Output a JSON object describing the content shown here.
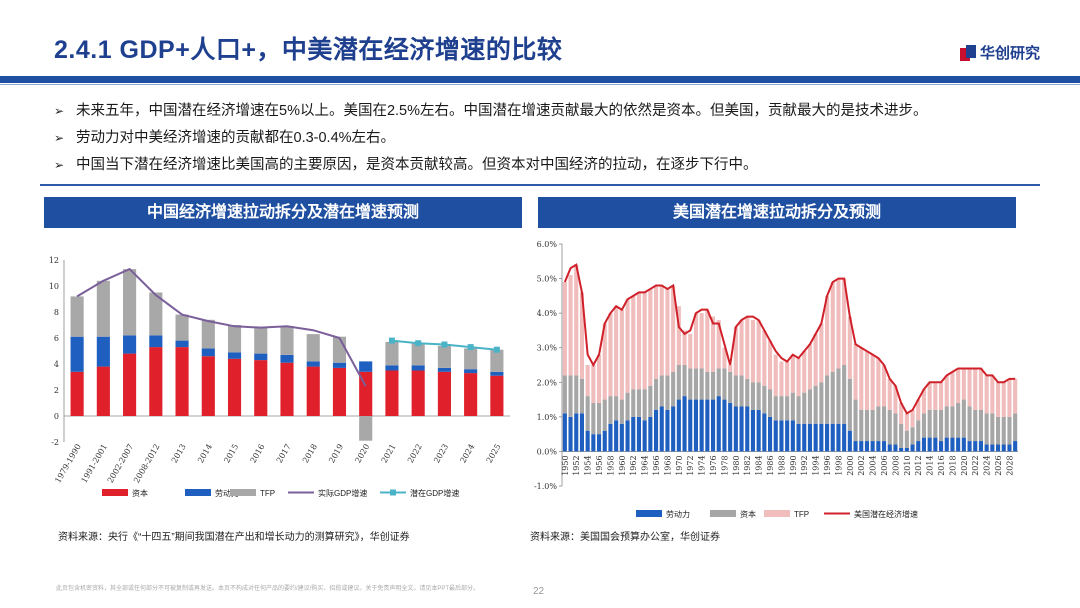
{
  "header": {
    "title": "2.4.1 GDP+人口+，中美潜在经济增速的比较",
    "logo_text": "华创研究"
  },
  "bullets": [
    "未来五年，中国潜在经济增速在5%以上。美国在2.5%左右。中国潜在增速贡献最大的依然是资本。但美国，贡献最大的是技术进步。",
    "劳动力对中美经济增速的贡献都在0.3-0.4%左右。",
    "中国当下潜在经济增速比美国高的主要原因，是资本贡献较高。但资本对中国经济的拉动，在逐步下行中。"
  ],
  "left_panel": {
    "heading": "中国经济增速拉动拆分及潜在增速预测",
    "source": "资料来源：央行《“十四五”期间我国潜在产出和增长动力的测算研究》，华创证券"
  },
  "right_panel": {
    "heading": "美国潜在增速拉动拆分及预测",
    "source": "资料来源：美国国会预算办公室，华创证券"
  },
  "footer": {
    "disclaimer": "此页包含机密资料，其全部或任何部分不可被复制或再发送。本页不构成对任何产品的要约/建议/购买、招揽或建议。关于免责声明全文，请见本PPT最后部分。",
    "page_number": "22"
  },
  "colors": {
    "capital": "#e0202a",
    "labor": "#1f5fbf",
    "tfp": "#a8a8a8",
    "actual_gdp": "#7a5f9a",
    "potential_gdp": "#4bb3c8",
    "us_capital": "#a6a6a6",
    "us_tfp": "#f0bcbc",
    "us_potential": "#d0202a"
  },
  "chart_data": [
    {
      "type": "bar",
      "stacked": true,
      "ylim": [
        -2,
        12
      ],
      "yticks": [
        -2,
        0,
        2,
        4,
        6,
        8,
        10,
        12
      ],
      "categories": [
        "1979-1990",
        "1991-2001",
        "2002-2007",
        "2008-2012",
        "2013",
        "2014",
        "2015",
        "2016",
        "2017",
        "2018",
        "2019",
        "2020",
        "2021",
        "2022",
        "2023",
        "2024",
        "2025"
      ],
      "series": [
        {
          "name": "资本",
          "values": [
            3.4,
            3.8,
            4.8,
            5.3,
            5.3,
            4.6,
            4.4,
            4.3,
            4.1,
            3.8,
            3.7,
            3.4,
            3.5,
            3.5,
            3.4,
            3.3,
            3.1
          ]
        },
        {
          "name": "劳动力",
          "values": [
            2.7,
            2.3,
            1.4,
            0.9,
            0.5,
            0.6,
            0.5,
            0.5,
            0.6,
            0.4,
            0.4,
            0.8,
            0.4,
            0.4,
            0.3,
            0.3,
            0.3
          ]
        },
        {
          "name": "TFP",
          "values": [
            3.1,
            4.3,
            5.1,
            3.3,
            2.0,
            2.2,
            2.1,
            2.0,
            2.2,
            2.1,
            2.0,
            -1.9,
            1.8,
            1.7,
            1.7,
            1.6,
            1.7
          ]
        }
      ],
      "lines": [
        {
          "name": "实际GDP增速",
          "values": [
            9.2,
            10.4,
            11.3,
            9.3,
            7.8,
            7.3,
            6.9,
            6.8,
            6.9,
            6.6,
            6.0,
            2.3,
            null,
            null,
            null,
            null,
            null
          ]
        },
        {
          "name": "潜在GDP增速",
          "values": [
            null,
            null,
            null,
            null,
            null,
            null,
            null,
            null,
            null,
            null,
            null,
            null,
            5.8,
            5.6,
            5.5,
            5.3,
            5.1
          ]
        }
      ]
    },
    {
      "type": "bar",
      "stacked": true,
      "ylim": [
        -1.0,
        6.0
      ],
      "yticks": [
        "-1.0%",
        "0.0%",
        "1.0%",
        "2.0%",
        "3.0%",
        "4.0%",
        "5.0%",
        "6.0%"
      ],
      "x_start": 1950,
      "x_end": 2029,
      "x_labels": [
        "1950",
        "1952",
        "1954",
        "1956",
        "1958",
        "1960",
        "1962",
        "1964",
        "1966",
        "1968",
        "1970",
        "1972",
        "1974",
        "1976",
        "1978",
        "1980",
        "1982",
        "1984",
        "1986",
        "1988",
        "1990",
        "1992",
        "1994",
        "1996",
        "1998",
        "2000",
        "2002",
        "2004",
        "2006",
        "2008",
        "2010",
        "2012",
        "2014",
        "2016",
        "2018",
        "2020",
        "2022",
        "2024",
        "2026",
        "2028"
      ],
      "series": [
        {
          "name": "劳动力",
          "values": [
            1.1,
            1.0,
            1.1,
            1.1,
            0.6,
            0.5,
            0.5,
            0.6,
            0.8,
            0.9,
            0.8,
            0.9,
            1.0,
            1.0,
            0.9,
            1.0,
            1.2,
            1.3,
            1.2,
            1.3,
            1.5,
            1.6,
            1.5,
            1.5,
            1.5,
            1.5,
            1.5,
            1.6,
            1.5,
            1.4,
            1.3,
            1.3,
            1.3,
            1.2,
            1.2,
            1.1,
            1.0,
            0.9,
            0.9,
            0.9,
            0.9,
            0.8,
            0.8,
            0.8,
            0.8,
            0.8,
            0.8,
            0.8,
            0.8,
            0.8,
            0.6,
            0.3,
            0.3,
            0.3,
            0.3,
            0.3,
            0.3,
            0.2,
            0.2,
            0.1,
            0.1,
            0.2,
            0.3,
            0.4,
            0.4,
            0.4,
            0.3,
            0.4,
            0.4,
            0.4,
            0.4,
            0.3,
            0.3,
            0.3,
            0.2,
            0.2,
            0.2,
            0.2,
            0.2,
            0.3
          ]
        },
        {
          "name": "资本",
          "values": [
            1.1,
            1.2,
            1.1,
            1.0,
            1.0,
            0.9,
            0.9,
            0.9,
            0.8,
            0.7,
            0.7,
            0.8,
            0.8,
            0.8,
            0.9,
            0.9,
            0.9,
            0.9,
            1.0,
            1.0,
            1.0,
            0.9,
            0.9,
            0.9,
            0.9,
            0.8,
            0.8,
            0.8,
            0.9,
            0.9,
            0.9,
            0.9,
            0.8,
            0.8,
            0.8,
            0.8,
            0.8,
            0.7,
            0.7,
            0.7,
            0.8,
            0.8,
            0.9,
            1.0,
            1.1,
            1.2,
            1.4,
            1.5,
            1.6,
            1.7,
            1.5,
            1.2,
            0.9,
            0.9,
            0.9,
            1.0,
            1.0,
            1.0,
            0.9,
            0.7,
            0.5,
            0.5,
            0.6,
            0.7,
            0.8,
            0.8,
            0.9,
            0.9,
            0.9,
            1.0,
            1.1,
            1.0,
            0.9,
            0.9,
            0.9,
            0.9,
            0.8,
            0.8,
            0.8,
            0.8
          ]
        },
        {
          "name": "TFP",
          "values": [
            2.7,
            2.9,
            3.2,
            2.5,
            0.9,
            1.1,
            1.4,
            2.2,
            2.4,
            2.6,
            2.6,
            2.7,
            2.7,
            2.8,
            2.8,
            2.8,
            2.7,
            2.6,
            2.5,
            2.5,
            1.7,
            1.0,
            1.0,
            1.6,
            1.6,
            1.8,
            1.6,
            1.4,
            0.6,
            0.2,
            1.4,
            1.6,
            1.8,
            1.8,
            1.8,
            1.6,
            1.4,
            1.2,
            1.0,
            1.0,
            1.1,
            1.1,
            1.2,
            1.3,
            1.5,
            1.7,
            2.3,
            2.6,
            2.6,
            2.5,
            1.8,
            1.6,
            1.8,
            1.7,
            1.6,
            1.4,
            1.2,
            0.9,
            0.8,
            0.6,
            0.5,
            0.5,
            0.6,
            0.7,
            0.8,
            0.8,
            0.8,
            0.9,
            1.0,
            1.0,
            0.9,
            1.1,
            1.2,
            1.2,
            1.1,
            1.1,
            1.0,
            1.0,
            1.1,
            1.0
          ]
        }
      ],
      "lines": [
        {
          "name": "美国潜在经济增速",
          "values": [
            4.9,
            5.3,
            5.4,
            4.6,
            2.8,
            2.5,
            2.8,
            3.7,
            4.0,
            4.2,
            4.1,
            4.4,
            4.5,
            4.6,
            4.6,
            4.7,
            4.8,
            4.8,
            4.7,
            4.8,
            3.6,
            3.4,
            3.5,
            4.0,
            4.1,
            4.1,
            3.7,
            3.7,
            3.1,
            2.5,
            3.6,
            3.8,
            3.9,
            3.9,
            3.8,
            3.5,
            3.2,
            2.9,
            2.7,
            2.6,
            2.8,
            2.7,
            2.9,
            3.1,
            3.4,
            3.7,
            4.5,
            4.9,
            5.0,
            5.0,
            3.9,
            3.1,
            3.0,
            2.9,
            2.8,
            2.7,
            2.5,
            2.1,
            1.9,
            1.4,
            1.1,
            1.2,
            1.5,
            1.8,
            2.0,
            2.0,
            2.0,
            2.2,
            2.3,
            2.4,
            2.4,
            2.4,
            2.4,
            2.4,
            2.2,
            2.2,
            2.0,
            2.0,
            2.1,
            2.1
          ]
        }
      ]
    }
  ]
}
